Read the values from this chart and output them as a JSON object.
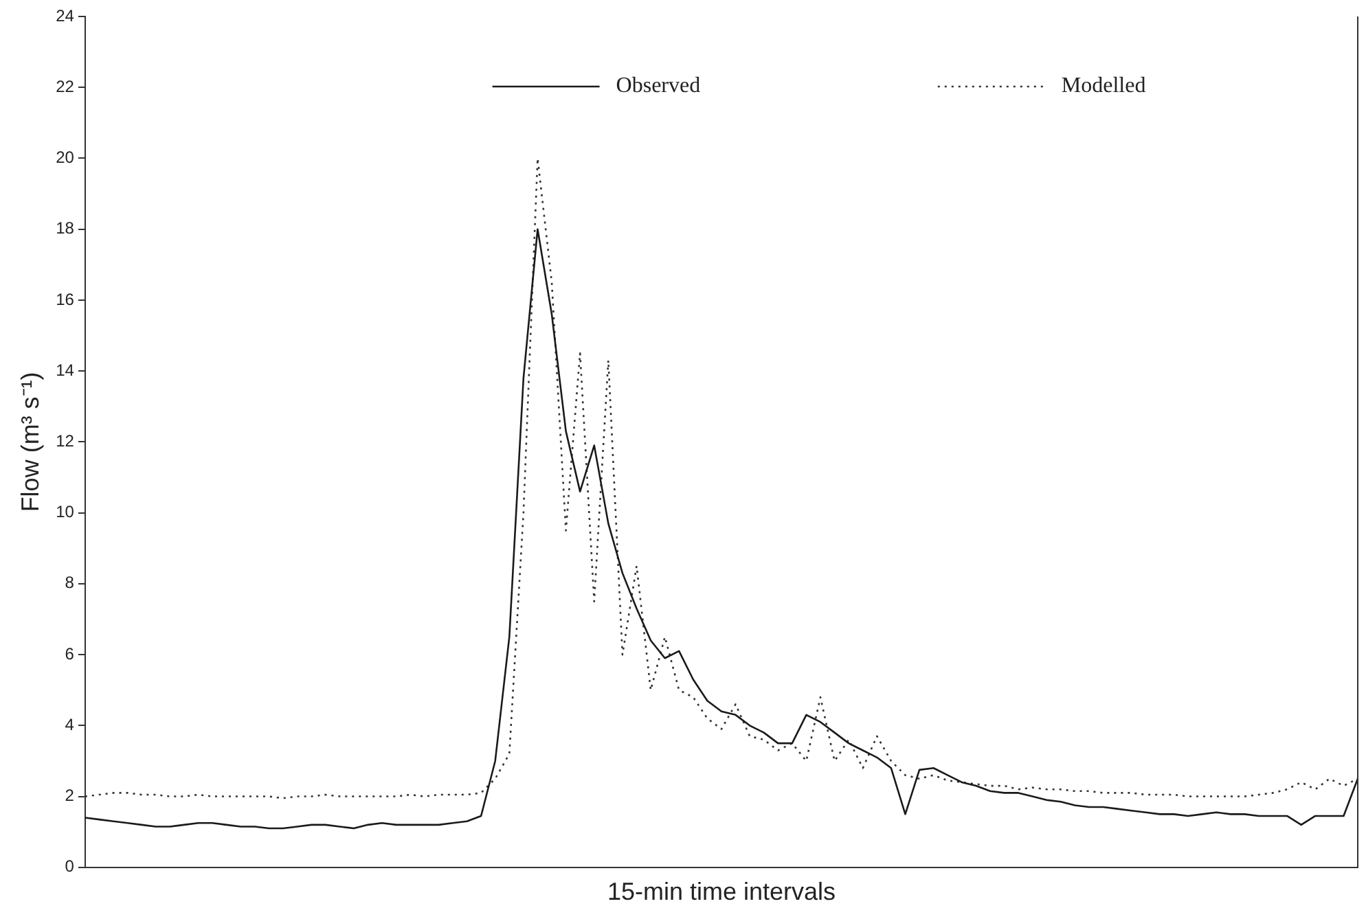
{
  "chart_data": {
    "type": "line",
    "xlabel": "15-min time intervals",
    "ylabel": "Flow (m³ s⁻¹)",
    "categories": [
      null,
      null,
      null,
      null,
      null,
      null,
      null,
      null,
      null,
      null,
      null,
      null,
      null,
      null,
      null,
      null,
      null,
      null,
      null,
      null,
      null,
      null,
      null,
      null,
      null,
      null,
      null,
      null,
      null,
      null,
      null,
      null,
      null,
      null,
      null,
      null,
      null,
      null,
      null,
      null,
      null,
      null,
      null,
      null,
      null,
      null,
      null,
      null,
      null,
      null,
      null,
      null,
      null,
      null,
      null,
      null,
      null,
      null,
      null,
      null,
      null,
      null,
      null,
      null,
      null,
      null,
      null,
      null,
      null,
      null,
      null,
      null,
      null,
      null,
      null,
      null,
      null,
      null,
      null,
      null,
      null,
      null,
      null,
      null,
      null,
      null,
      null,
      null,
      null,
      null,
      null
    ],
    "series": [
      {
        "name": "Observed",
        "color": "#1a1a1a",
        "line_style": "solid",
        "values": [
          1.4,
          1.35,
          1.3,
          1.25,
          1.2,
          1.15,
          1.15,
          1.2,
          1.25,
          1.25,
          1.2,
          1.15,
          1.15,
          1.1,
          1.1,
          1.15,
          1.2,
          1.2,
          1.15,
          1.1,
          1.2,
          1.25,
          1.2,
          1.2,
          1.2,
          1.2,
          1.25,
          1.3,
          1.45,
          3.0,
          6.5,
          13.8,
          18.0,
          15.6,
          12.3,
          10.6,
          11.9,
          9.7,
          8.3,
          7.3,
          6.4,
          5.9,
          6.1,
          5.3,
          4.7,
          4.4,
          4.3,
          4.0,
          3.8,
          3.5,
          3.5,
          4.3,
          4.1,
          3.8,
          3.5,
          3.3,
          3.1,
          2.8,
          1.5,
          2.75,
          2.8,
          2.6,
          2.4,
          2.3,
          2.15,
          2.1,
          2.1,
          2.0,
          1.9,
          1.85,
          1.75,
          1.7,
          1.7,
          1.65,
          1.6,
          1.55,
          1.5,
          1.5,
          1.45,
          1.5,
          1.55,
          1.5,
          1.5,
          1.45,
          1.45,
          1.45,
          1.2,
          1.45,
          1.45,
          1.45,
          2.5
        ]
      },
      {
        "name": "Modelled",
        "color": "#333333",
        "line_style": "dotted",
        "values": [
          2.0,
          2.05,
          2.1,
          2.1,
          2.05,
          2.05,
          2.0,
          2.0,
          2.05,
          2.0,
          2.0,
          2.0,
          2.0,
          2.0,
          1.95,
          2.0,
          2.0,
          2.05,
          2.0,
          2.0,
          2.0,
          2.0,
          2.0,
          2.05,
          2.0,
          2.05,
          2.05,
          2.05,
          2.1,
          2.5,
          3.2,
          10.0,
          20.0,
          16.5,
          9.5,
          14.5,
          7.5,
          14.3,
          6.0,
          8.5,
          5.0,
          6.5,
          5.0,
          4.8,
          4.2,
          3.9,
          4.6,
          3.7,
          3.6,
          3.3,
          3.5,
          3.0,
          4.8,
          3.0,
          3.6,
          2.8,
          3.7,
          3.0,
          2.6,
          2.5,
          2.6,
          2.45,
          2.4,
          2.35,
          2.3,
          2.3,
          2.2,
          2.25,
          2.2,
          2.2,
          2.15,
          2.15,
          2.1,
          2.1,
          2.1,
          2.05,
          2.05,
          2.05,
          2.0,
          2.0,
          2.0,
          2.0,
          2.0,
          2.05,
          2.1,
          2.2,
          2.4,
          2.2,
          2.5,
          2.3,
          2.5
        ]
      }
    ],
    "ylim": [
      0,
      24
    ],
    "yticks": [
      0,
      2,
      4,
      6,
      8,
      10,
      12,
      14,
      16,
      18,
      20,
      22,
      24
    ],
    "tick_labels": "y",
    "grid": false,
    "legend": "top",
    "marker": "none"
  }
}
